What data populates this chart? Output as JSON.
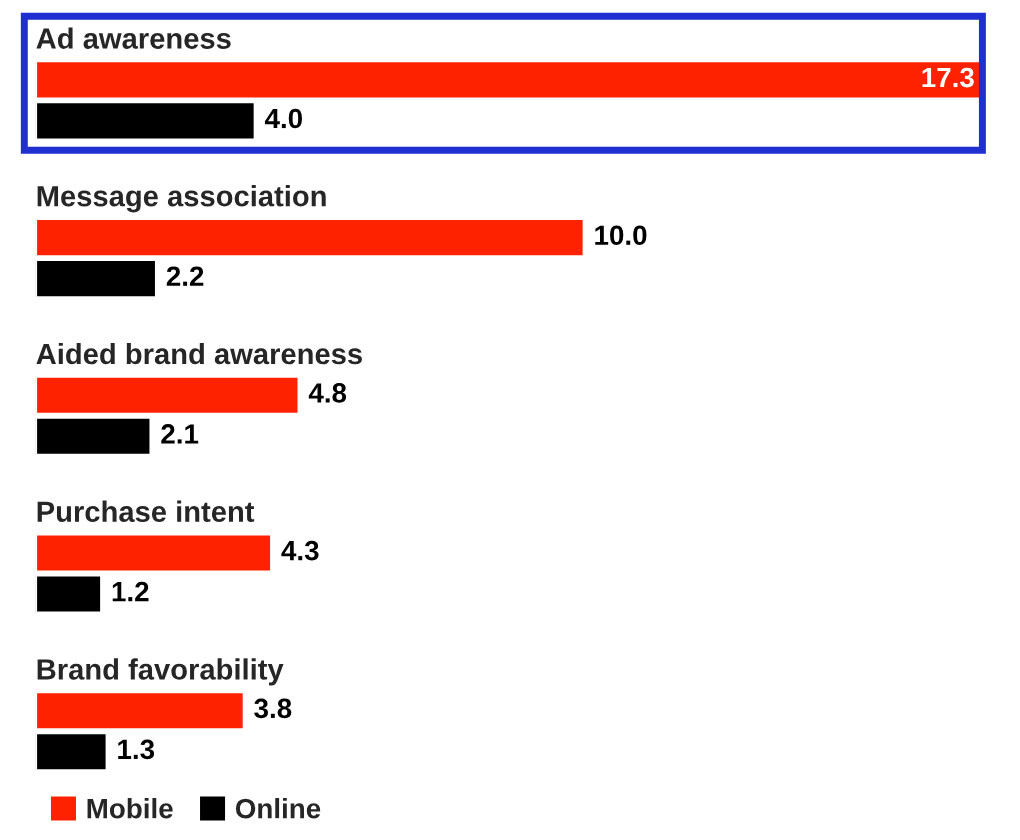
{
  "chart_data": {
    "type": "bar",
    "orientation": "horizontal",
    "categories": [
      "Ad awareness",
      "Message association",
      "Aided brand awareness",
      "Purchase intent",
      "Brand favorability"
    ],
    "series": [
      {
        "name": "Mobile",
        "color": "#ff2200",
        "values": [
          17.3,
          10.0,
          4.8,
          4.3,
          3.8
        ],
        "value_labels": [
          "17.3",
          "10.0",
          "4.8",
          "4.3",
          "3.8"
        ]
      },
      {
        "name": "Online",
        "color": "#000000",
        "values": [
          4.0,
          2.2,
          2.1,
          1.2,
          1.3
        ],
        "value_labels": [
          "4.0",
          "2.2",
          "2.1",
          "1.2",
          "1.3"
        ]
      }
    ],
    "legend": "bottom left"
  }
}
